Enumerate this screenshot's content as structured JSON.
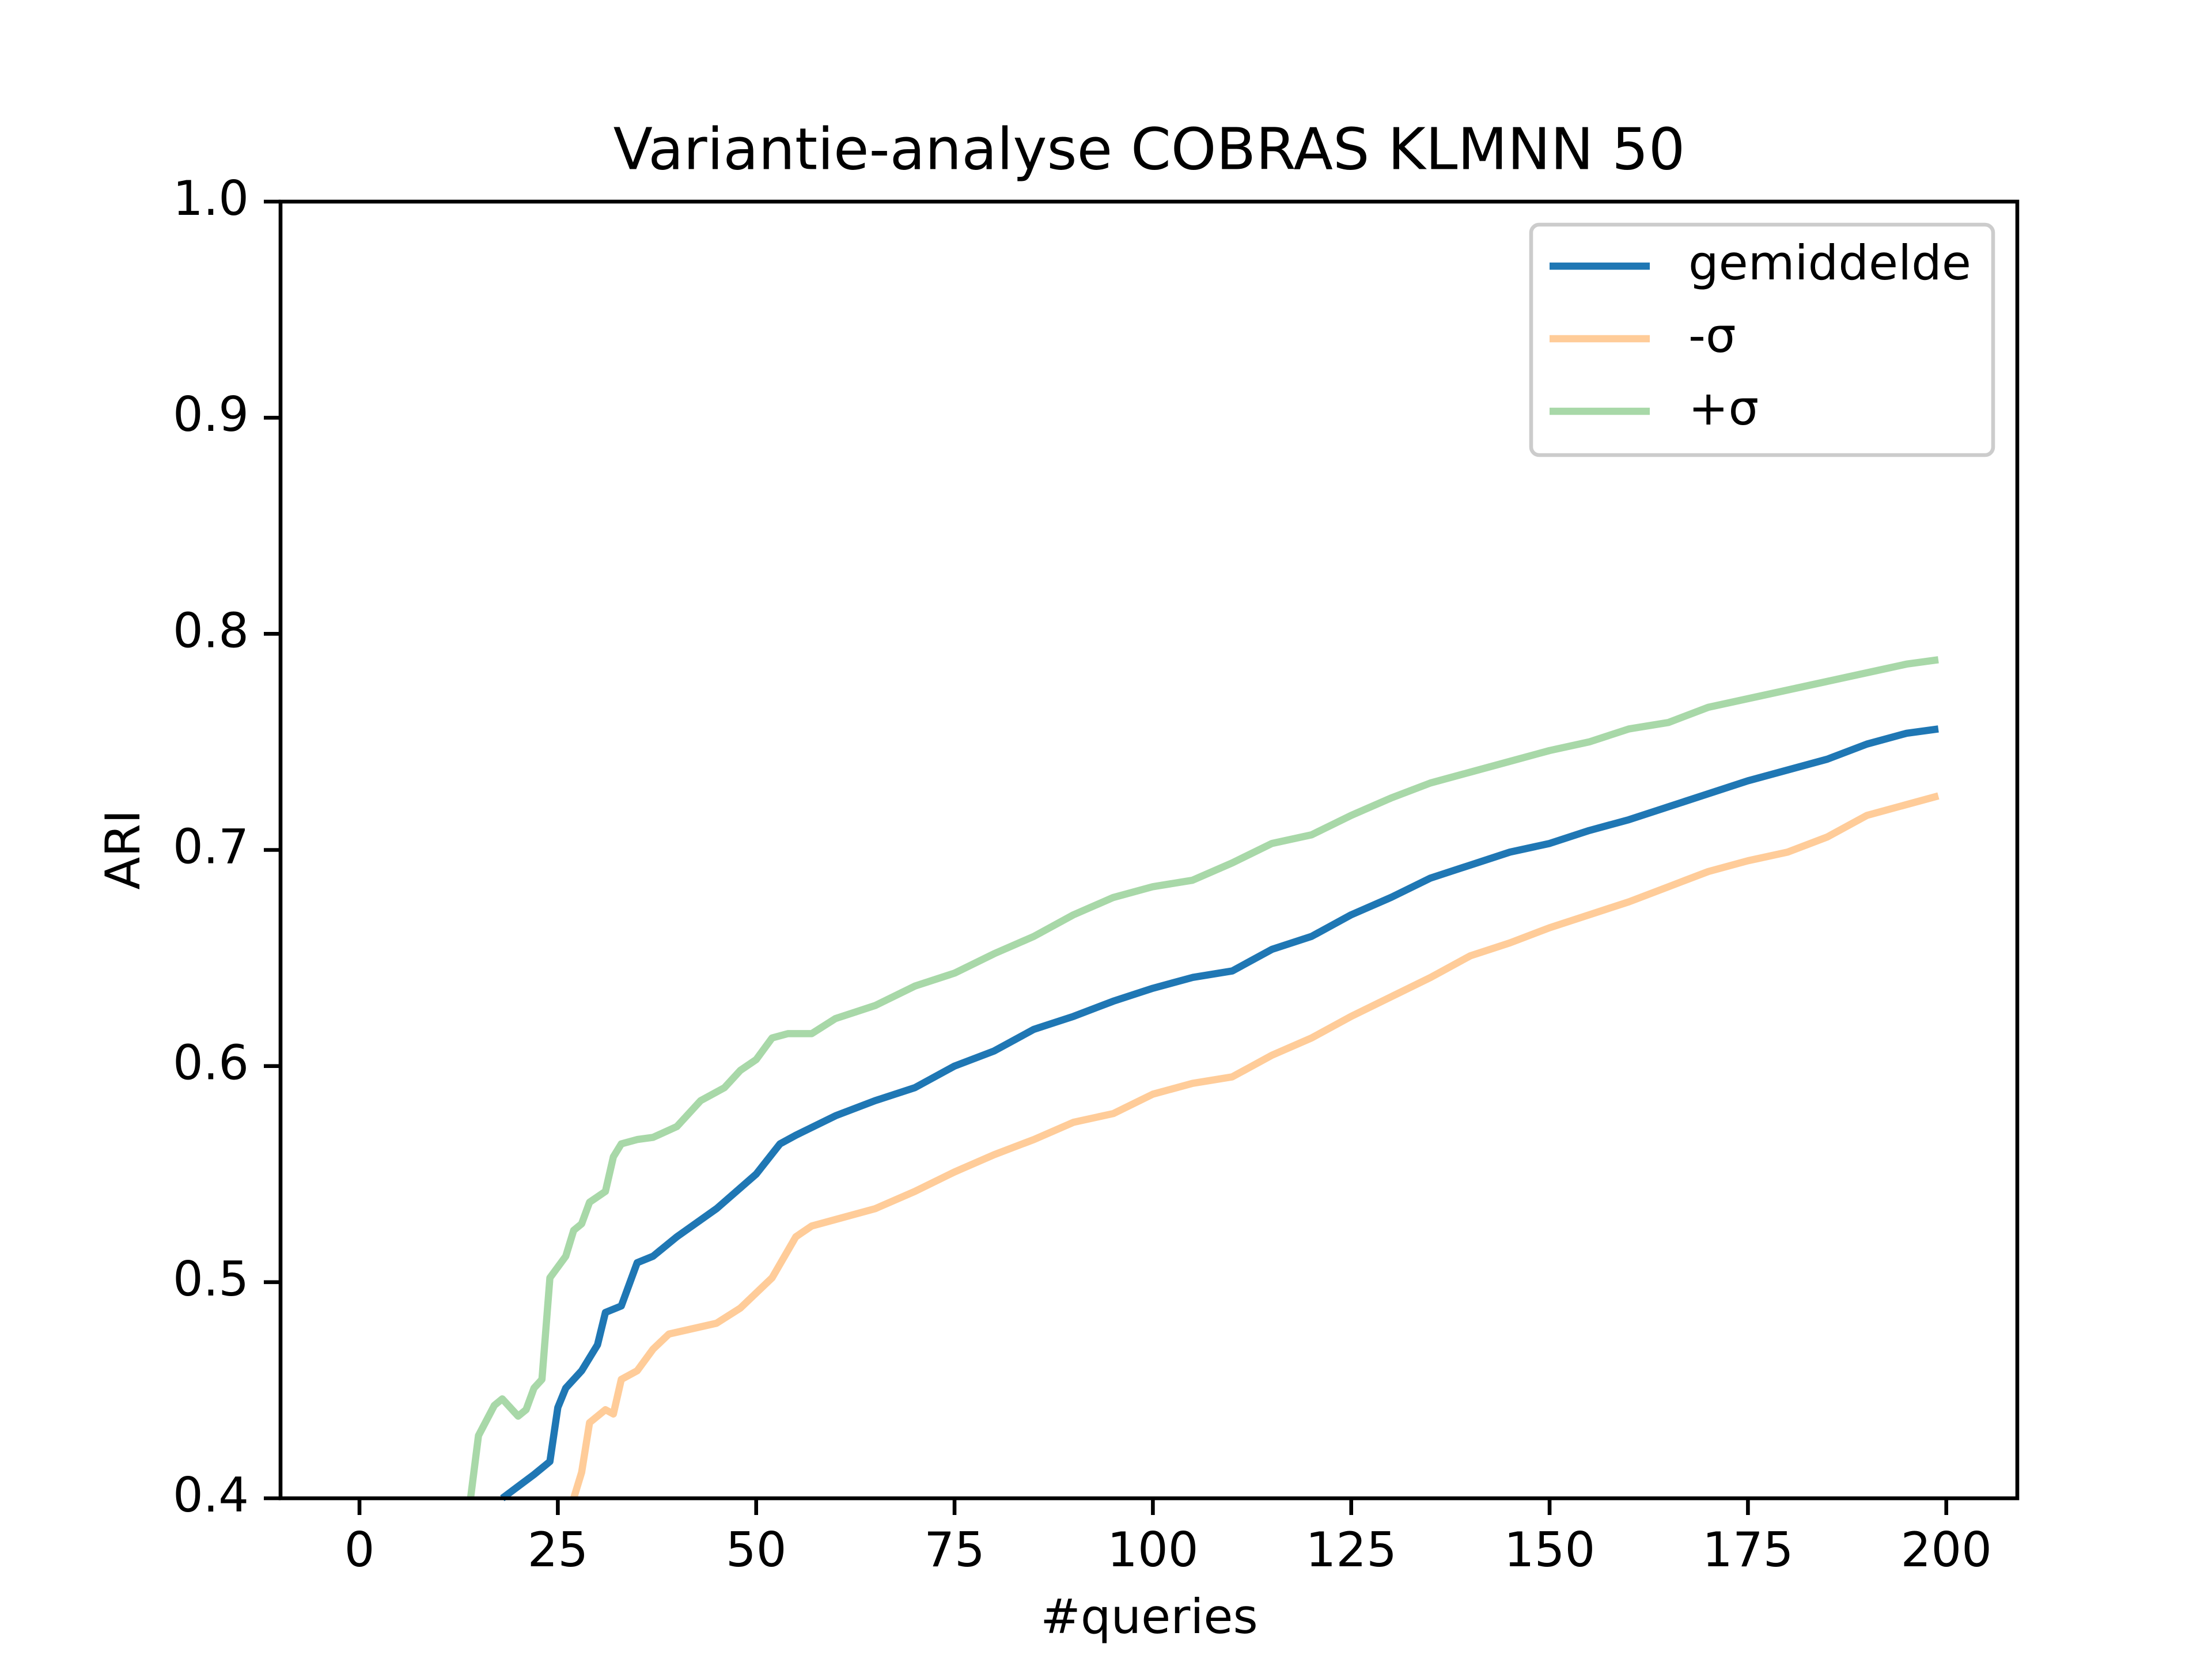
{
  "chart_data": {
    "type": "line",
    "title": "Variantie-analyse COBRAS KLMNN 50",
    "x_label": "#queries",
    "y_label": "ARI",
    "xlim": [
      -9.95,
      208.95
    ],
    "xticks": [
      0,
      25,
      50,
      75,
      100,
      125,
      150,
      175,
      200
    ],
    "ylim": [
      0.4,
      1.0
    ],
    "yticks": [
      {
        "value": 0.4,
        "label": "0.4"
      },
      {
        "value": 0.5,
        "label": "0.5"
      },
      {
        "value": 0.6,
        "label": "0.6"
      },
      {
        "value": 0.7,
        "label": "0.7"
      },
      {
        "value": 0.8,
        "label": "0.8"
      },
      {
        "value": 0.9,
        "label": "0.9"
      },
      {
        "value": 1.0,
        "label": "1.0"
      }
    ],
    "legend": "upper right",
    "series": [
      {
        "name": "gemiddelde",
        "color": "#1f77b4",
        "x": [
          18,
          22,
          24,
          25,
          26,
          28,
          30,
          31,
          33,
          34,
          35,
          37,
          40,
          45,
          50,
          53,
          55,
          60,
          65,
          70,
          75,
          80,
          85,
          90,
          95,
          100,
          105,
          110,
          115,
          120,
          125,
          130,
          135,
          140,
          145,
          150,
          155,
          160,
          165,
          170,
          175,
          180,
          185,
          190,
          195,
          199
        ],
        "values": [
          0.4,
          0.411,
          0.417,
          0.442,
          0.451,
          0.459,
          0.471,
          0.486,
          0.489,
          0.499,
          0.509,
          0.512,
          0.521,
          0.534,
          0.55,
          0.564,
          0.568,
          0.577,
          0.584,
          0.59,
          0.6,
          0.607,
          0.617,
          0.623,
          0.63,
          0.636,
          0.641,
          0.644,
          0.654,
          0.66,
          0.67,
          0.678,
          0.687,
          0.693,
          0.699,
          0.703,
          0.709,
          0.714,
          0.72,
          0.726,
          0.732,
          0.737,
          0.742,
          0.749,
          0.754,
          0.756
        ]
      },
      {
        "name": "-σ",
        "color": "#ffcc99",
        "x": [
          27,
          28,
          29,
          31,
          32,
          33,
          35,
          37,
          39,
          45,
          48,
          52,
          55,
          57,
          60,
          65,
          70,
          75,
          80,
          85,
          90,
          95,
          100,
          105,
          110,
          115,
          120,
          125,
          130,
          135,
          140,
          145,
          150,
          155,
          160,
          165,
          170,
          175,
          180,
          185,
          190,
          195,
          199
        ],
        "values": [
          0.4,
          0.412,
          0.435,
          0.441,
          0.439,
          0.455,
          0.459,
          0.469,
          0.476,
          0.481,
          0.488,
          0.502,
          0.521,
          0.526,
          0.529,
          0.534,
          0.542,
          0.551,
          0.559,
          0.566,
          0.574,
          0.578,
          0.587,
          0.592,
          0.595,
          0.605,
          0.613,
          0.623,
          0.632,
          0.641,
          0.651,
          0.657,
          0.664,
          0.67,
          0.676,
          0.683,
          0.69,
          0.695,
          0.699,
          0.706,
          0.716,
          0.721,
          0.725
        ]
      },
      {
        "name": "+σ",
        "color": "#a8d8a8",
        "x": [
          14,
          15,
          17,
          18,
          20,
          21,
          22,
          23,
          24,
          26,
          27,
          28,
          29,
          31,
          32,
          33,
          35,
          37,
          40,
          43,
          46,
          48,
          50,
          52,
          54,
          57,
          60,
          65,
          70,
          75,
          80,
          85,
          90,
          95,
          100,
          105,
          110,
          115,
          120,
          125,
          130,
          135,
          140,
          145,
          150,
          155,
          160,
          165,
          170,
          175,
          180,
          185,
          190,
          195,
          199
        ],
        "values": [
          0.4,
          0.429,
          0.443,
          0.446,
          0.438,
          0.441,
          0.451,
          0.455,
          0.502,
          0.512,
          0.524,
          0.527,
          0.537,
          0.542,
          0.558,
          0.564,
          0.566,
          0.567,
          0.572,
          0.584,
          0.59,
          0.598,
          0.603,
          0.613,
          0.615,
          0.615,
          0.622,
          0.628,
          0.637,
          0.643,
          0.652,
          0.66,
          0.67,
          0.678,
          0.683,
          0.686,
          0.694,
          0.703,
          0.707,
          0.716,
          0.724,
          0.731,
          0.736,
          0.741,
          0.746,
          0.75,
          0.756,
          0.759,
          0.766,
          0.77,
          0.774,
          0.778,
          0.782,
          0.786,
          0.788
        ]
      }
    ]
  }
}
